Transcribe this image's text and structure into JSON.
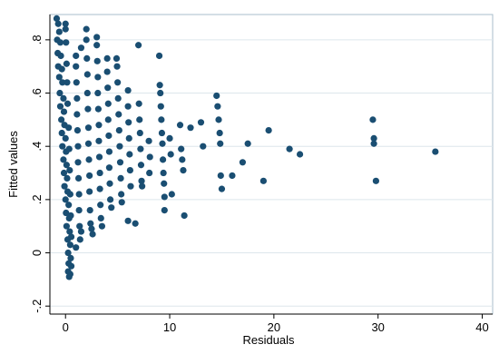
{
  "chart_data": {
    "type": "scatter",
    "title": "",
    "xlabel": "Residuals",
    "ylabel": "Fitted values",
    "xlim": [
      -1.5,
      41
    ],
    "ylim": [
      -0.23,
      0.895
    ],
    "xticks": [
      0,
      10,
      20,
      30,
      40
    ],
    "xtick_labels": [
      "0",
      "10",
      "20",
      "30",
      "40"
    ],
    "yticks": [
      -0.2,
      0,
      0.2,
      0.4,
      0.6,
      0.8
    ],
    "ytick_labels": [
      "-.2",
      "0",
      ".2",
      ".4",
      ".6",
      ".8"
    ],
    "grid": "horizontal",
    "legend": "none",
    "colors": {
      "background": "#ffffff",
      "plot_background": "#ffffff",
      "border": "#a9bdcb",
      "gridline": "#dde6ec",
      "marker": "#1a4e72",
      "axis": "#000000"
    },
    "series": [
      {
        "points": [
          [
            -0.85,
            0.88
          ],
          [
            -0.7,
            0.86
          ],
          [
            -0.6,
            0.83
          ],
          [
            -0.5,
            0.79
          ],
          [
            -0.45,
            0.74
          ],
          [
            -0.35,
            0.69
          ],
          [
            -0.3,
            0.64
          ],
          [
            -0.2,
            0.58
          ],
          [
            -0.15,
            0.53
          ],
          [
            -0.1,
            0.48
          ],
          [
            0.0,
            0.43
          ],
          [
            0.05,
            0.38
          ],
          [
            0.1,
            0.33
          ],
          [
            0.15,
            0.28
          ],
          [
            0.2,
            0.23
          ],
          [
            0.3,
            0.18
          ],
          [
            0.35,
            0.13
          ],
          [
            0.4,
            0.08
          ],
          [
            0.45,
            0.03
          ],
          [
            0.5,
            -0.02
          ],
          [
            0.55,
            -0.05
          ],
          [
            0.45,
            -0.08
          ],
          [
            0.35,
            -0.09
          ],
          [
            0.25,
            -0.07
          ],
          [
            -0.8,
            0.8
          ],
          [
            -0.75,
            0.75
          ],
          [
            -0.7,
            0.7
          ],
          [
            -0.6,
            0.66
          ],
          [
            -0.55,
            0.6
          ],
          [
            -0.5,
            0.55
          ],
          [
            -0.4,
            0.5
          ],
          [
            -0.35,
            0.45
          ],
          [
            -0.3,
            0.4
          ],
          [
            -0.2,
            0.35
          ],
          [
            -0.15,
            0.3
          ],
          [
            -0.1,
            0.25
          ],
          [
            0.0,
            0.2
          ],
          [
            0.05,
            0.15
          ],
          [
            0.1,
            0.1
          ],
          [
            0.2,
            0.05
          ],
          [
            0.25,
            0.0
          ],
          [
            0.3,
            -0.04
          ],
          [
            0.0,
            0.86
          ],
          [
            0.0,
            0.84
          ],
          [
            0.05,
            0.79
          ],
          [
            0.1,
            0.71
          ],
          [
            0.15,
            0.64
          ],
          [
            0.2,
            0.56
          ],
          [
            0.3,
            0.47
          ],
          [
            0.35,
            0.39
          ],
          [
            0.4,
            0.31
          ],
          [
            0.45,
            0.22
          ],
          [
            0.5,
            0.14
          ],
          [
            0.55,
            0.06
          ],
          [
            1.0,
            0.74
          ],
          [
            1.0,
            0.7
          ],
          [
            1.05,
            0.64
          ],
          [
            1.1,
            0.58
          ],
          [
            1.1,
            0.52
          ],
          [
            1.15,
            0.46
          ],
          [
            1.2,
            0.4
          ],
          [
            1.2,
            0.34
          ],
          [
            1.25,
            0.28
          ],
          [
            1.3,
            0.22
          ],
          [
            1.3,
            0.16
          ],
          [
            1.35,
            0.1
          ],
          [
            1.4,
            0.05
          ],
          [
            1.0,
            0.02
          ],
          [
            1.5,
            0.08
          ],
          [
            1.5,
            0.77
          ],
          [
            2.0,
            0.84
          ],
          [
            2.0,
            0.8
          ],
          [
            2.05,
            0.73
          ],
          [
            2.1,
            0.67
          ],
          [
            2.1,
            0.6
          ],
          [
            2.15,
            0.54
          ],
          [
            2.2,
            0.47
          ],
          [
            2.2,
            0.41
          ],
          [
            2.25,
            0.35
          ],
          [
            2.3,
            0.29
          ],
          [
            2.3,
            0.23
          ],
          [
            2.35,
            0.16
          ],
          [
            2.4,
            0.11
          ],
          [
            2.5,
            0.09
          ],
          [
            2.6,
            0.07
          ],
          [
            3.0,
            0.81
          ],
          [
            3.0,
            0.78
          ],
          [
            3.05,
            0.72
          ],
          [
            3.1,
            0.66
          ],
          [
            3.1,
            0.6
          ],
          [
            3.15,
            0.54
          ],
          [
            3.2,
            0.48
          ],
          [
            3.2,
            0.42
          ],
          [
            3.25,
            0.36
          ],
          [
            3.3,
            0.3
          ],
          [
            3.3,
            0.24
          ],
          [
            3.35,
            0.18
          ],
          [
            3.4,
            0.13
          ],
          [
            3.5,
            0.1
          ],
          [
            4.0,
            0.73
          ],
          [
            4.0,
            0.68
          ],
          [
            4.05,
            0.62
          ],
          [
            4.1,
            0.56
          ],
          [
            4.1,
            0.5
          ],
          [
            4.15,
            0.44
          ],
          [
            4.2,
            0.38
          ],
          [
            4.2,
            0.32
          ],
          [
            4.25,
            0.26
          ],
          [
            4.3,
            0.2
          ],
          [
            4.4,
            0.17
          ],
          [
            4.9,
            0.73
          ],
          [
            4.95,
            0.7
          ],
          [
            5.0,
            0.64
          ],
          [
            5.05,
            0.58
          ],
          [
            5.1,
            0.52
          ],
          [
            5.15,
            0.46
          ],
          [
            5.2,
            0.4
          ],
          [
            5.25,
            0.34
          ],
          [
            5.3,
            0.28
          ],
          [
            5.35,
            0.22
          ],
          [
            5.4,
            0.19
          ],
          [
            6.0,
            0.61
          ],
          [
            6.0,
            0.55
          ],
          [
            6.05,
            0.49
          ],
          [
            6.1,
            0.43
          ],
          [
            6.15,
            0.37
          ],
          [
            6.2,
            0.31
          ],
          [
            6.25,
            0.25
          ],
          [
            6.0,
            0.12
          ],
          [
            6.7,
            0.11
          ],
          [
            7.0,
            0.78
          ],
          [
            7.05,
            0.56
          ],
          [
            7.1,
            0.5
          ],
          [
            7.15,
            0.45
          ],
          [
            7.2,
            0.39
          ],
          [
            7.25,
            0.33
          ],
          [
            7.3,
            0.27
          ],
          [
            7.35,
            0.25
          ],
          [
            8.0,
            0.42
          ],
          [
            8.05,
            0.3
          ],
          [
            8.1,
            0.36
          ],
          [
            9.0,
            0.74
          ],
          [
            9.05,
            0.63
          ],
          [
            9.1,
            0.6
          ],
          [
            9.15,
            0.55
          ],
          [
            9.2,
            0.5
          ],
          [
            9.25,
            0.45
          ],
          [
            9.3,
            0.41
          ],
          [
            9.35,
            0.35
          ],
          [
            9.4,
            0.3
          ],
          [
            9.45,
            0.26
          ],
          [
            9.5,
            0.21
          ],
          [
            9.5,
            0.16
          ],
          [
            10.0,
            0.43
          ],
          [
            10.1,
            0.37
          ],
          [
            10.2,
            0.22
          ],
          [
            11.0,
            0.48
          ],
          [
            11.1,
            0.39
          ],
          [
            11.2,
            0.35
          ],
          [
            11.3,
            0.31
          ],
          [
            11.4,
            0.14
          ],
          [
            12.0,
            0.47
          ],
          [
            13.0,
            0.49
          ],
          [
            13.2,
            0.4
          ],
          [
            14.5,
            0.59
          ],
          [
            14.6,
            0.55
          ],
          [
            14.7,
            0.5
          ],
          [
            14.8,
            0.45
          ],
          [
            14.85,
            0.41
          ],
          [
            14.9,
            0.29
          ],
          [
            15.0,
            0.24
          ],
          [
            16.0,
            0.29
          ],
          [
            17.0,
            0.34
          ],
          [
            17.5,
            0.41
          ],
          [
            19.0,
            0.27
          ],
          [
            19.5,
            0.46
          ],
          [
            21.5,
            0.39
          ],
          [
            22.5,
            0.37
          ],
          [
            29.5,
            0.5
          ],
          [
            29.6,
            0.43
          ],
          [
            29.6,
            0.41
          ],
          [
            29.8,
            0.27
          ],
          [
            35.5,
            0.38
          ]
        ]
      }
    ]
  }
}
